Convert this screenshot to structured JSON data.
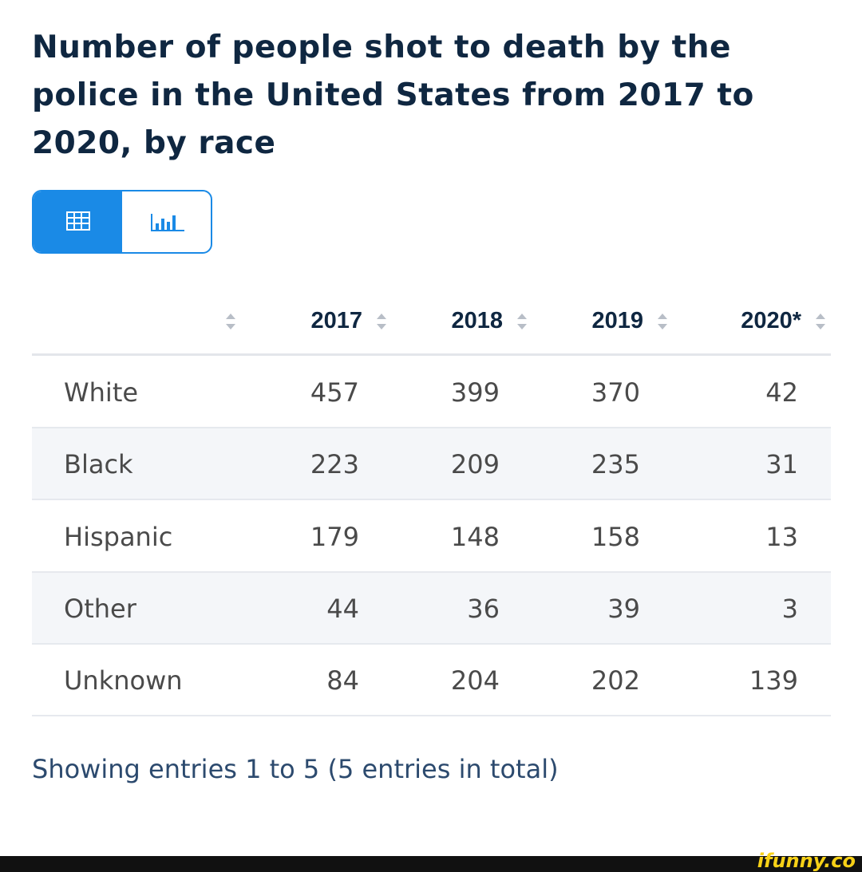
{
  "header": {
    "title": "Number of people shot to death by the police in the United States from 2017 to 2020, by race"
  },
  "table": {
    "columns": [
      "2017",
      "2018",
      "2019",
      "2020*"
    ],
    "rows": [
      [
        "White",
        457,
        399,
        370,
        42
      ],
      [
        "Black",
        223,
        209,
        235,
        31
      ],
      [
        "Hispanic",
        179,
        148,
        158,
        13
      ],
      [
        "Other",
        44,
        36,
        39,
        3
      ],
      [
        "Unknown",
        84,
        204,
        202,
        139
      ]
    ]
  },
  "footer": {
    "text": "Showing entries 1 to 5 (5 entries in total)"
  },
  "watermark": "ifunny.co"
}
